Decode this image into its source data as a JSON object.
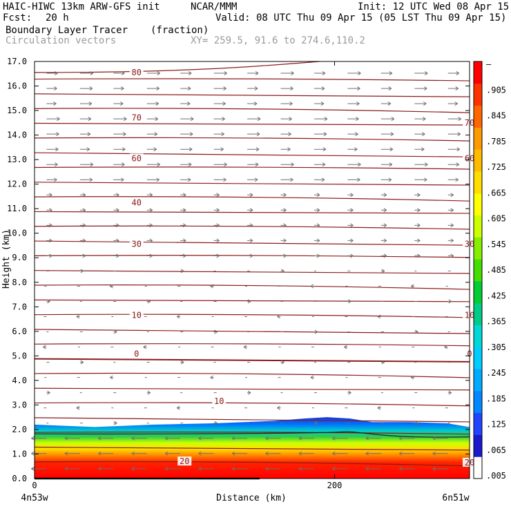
{
  "header": {
    "model": "HAIC-HIWC 13km ARW-GFS init",
    "org": "NCAR/MMM",
    "init": "Init: 12 UTC Wed 08 Apr 15",
    "fcst_label": "Fcst:",
    "fcst_value": "20 h",
    "valid": "Valid: 08 UTC Thu 09 Apr 15 (05 LST Thu 09 Apr 15)",
    "field": "Boundary Layer Tracer",
    "field_units": "(fraction)",
    "overlay": "Circulation vectors",
    "xy": "XY= 259.5, 91.6 to 274.6,110.2"
  },
  "colors": {
    "contour": "#8b1a1a",
    "vector": "#6e6e6e",
    "colorbar": [
      "#ffffff",
      "#1a1acc",
      "#2244ff",
      "#0088ff",
      "#00aaff",
      "#00ccff",
      "#00d8d8",
      "#00cc88",
      "#00cc33",
      "#44dd00",
      "#88ee00",
      "#ccff00",
      "#ffff00",
      "#ffdd00",
      "#ffbb00",
      "#ff9900",
      "#ff6600",
      "#ff3300",
      "#ff0000"
    ]
  },
  "chart_data": {
    "type": "cross-section",
    "xlabel": "Distance (km)",
    "ylabel": "Height (km)",
    "xlim": [
      0,
      290
    ],
    "ylim": [
      0,
      17
    ],
    "x_ticks": [
      0,
      200
    ],
    "x_tick_labels": [
      "0",
      "200"
    ],
    "x_end_labels": [
      "4n53w",
      "6n51w"
    ],
    "y_ticks": [
      0,
      1,
      2,
      3,
      4,
      5,
      6,
      7,
      8,
      9,
      10,
      11,
      12,
      13,
      14,
      15,
      16,
      17
    ],
    "y_tick_labels": [
      "0.0",
      "1.0",
      "2.0",
      "3.0",
      "4.0",
      "5.0",
      "6.0",
      "7.0",
      "8.0",
      "9.0",
      "10.0",
      "11.0",
      "12.0",
      "13.0",
      "14.0",
      "15.0",
      "16.0",
      "17.0"
    ],
    "colorbar_labels": [
      ".005",
      ".065",
      ".125",
      ".185",
      ".245",
      ".305",
      ".365",
      ".425",
      ".485",
      ".545",
      ".605",
      ".665",
      ".725",
      ".785",
      ".845",
      ".905",
      "–"
    ],
    "contour_labels": [
      "80",
      "70",
      "70",
      "60",
      "60",
      "40",
      "30",
      "30",
      "10",
      "10",
      "0",
      "0",
      "10",
      "20",
      "20"
    ],
    "tracer_top_km": [
      [
        0,
        2.2
      ],
      [
        40,
        2.1
      ],
      [
        80,
        2.2
      ],
      [
        120,
        2.25
      ],
      [
        160,
        2.35
      ],
      [
        180,
        2.45
      ],
      [
        195,
        2.5
      ],
      [
        210,
        2.45
      ],
      [
        225,
        2.3
      ],
      [
        250,
        2.3
      ],
      [
        275,
        2.25
      ],
      [
        290,
        2.1
      ]
    ]
  }
}
